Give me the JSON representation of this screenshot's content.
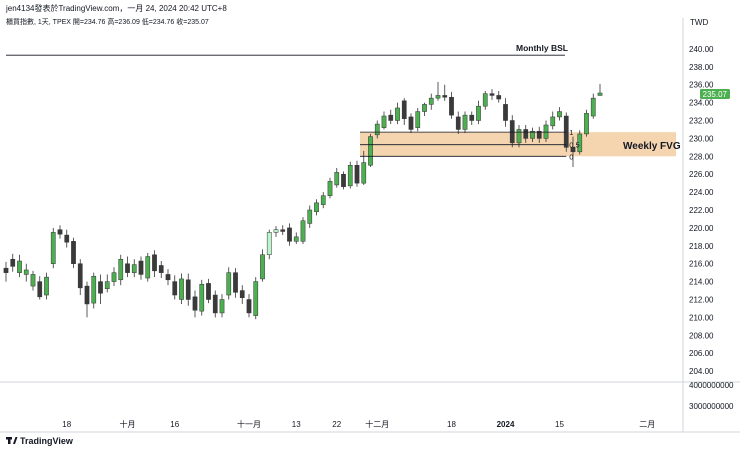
{
  "header": {
    "publisher_line": "jen4134發表於TradingView.com，一月 24, 2024 20:42 UTC+8",
    "symbol_line": "櫃買指數, 1天, TPEX  開=234.76  高=236.09  低=234.76  收=235.07"
  },
  "footer": {
    "brand": "TradingView"
  },
  "colors": {
    "up": "#4caf50",
    "down": "#3a3a3a",
    "fvg": "#f5d5b0",
    "price_tag": "#4caf50",
    "highlight": "#b9f6ca"
  },
  "chart_data": {
    "type": "candlestick",
    "currency": "TWD",
    "ylim": [
      202,
      242
    ],
    "y_ticks": [
      "240.00",
      "238.00",
      "236.00",
      "234.00",
      "232.00",
      "230.00",
      "228.00",
      "226.00",
      "224.00",
      "222.00",
      "220.00",
      "218.00",
      "216.00",
      "214.00",
      "212.00",
      "210.00",
      "208.00",
      "206.00",
      "204.00"
    ],
    "last_price": "235.07",
    "volume_ticks": [
      "4000000000",
      "3000000000"
    ],
    "x_ticks": [
      "18",
      "十月",
      "16",
      "十一月",
      "13",
      "22",
      "十二月",
      "18",
      "2024",
      "15",
      "二月"
    ],
    "annotations": {
      "bsl_label": "Monthly BSL",
      "bsl_price": 239.3,
      "fvg_label": "Weekly FVG",
      "fvg_top": 230.7,
      "fvg_bottom": 228.0,
      "fib_levels": [
        {
          "label": "1",
          "price": 230.7
        },
        {
          "label": "0.5",
          "price": 229.3
        },
        {
          "label": "0",
          "price": 228.0
        }
      ]
    },
    "candles": [
      [
        215.5,
        215.0,
        216.2,
        214.0
      ],
      [
        216.5,
        215.7,
        217.1,
        215.1
      ],
      [
        215.0,
        216.3,
        217.0,
        214.5
      ],
      [
        214.8,
        215.3,
        216.0,
        214.0
      ],
      [
        213.5,
        214.8,
        215.2,
        213.0
      ],
      [
        214.0,
        212.3,
        214.6,
        212.0
      ],
      [
        212.5,
        214.5,
        215.0,
        212.0
      ],
      [
        216.0,
        219.5,
        220.0,
        215.5
      ],
      [
        219.8,
        219.3,
        220.3,
        218.8
      ],
      [
        219.2,
        218.4,
        219.8,
        217.8
      ],
      [
        218.5,
        216.0,
        218.9,
        215.5
      ],
      [
        216.0,
        213.3,
        216.5,
        212.5
      ],
      [
        213.5,
        211.5,
        214.0,
        210.0
      ],
      [
        211.6,
        214.6,
        215.0,
        211.0
      ],
      [
        214.0,
        212.7,
        214.8,
        211.5
      ],
      [
        213.2,
        214.0,
        214.8,
        212.8
      ],
      [
        214.0,
        215.0,
        215.6,
        213.5
      ],
      [
        214.2,
        216.5,
        217.0,
        213.6
      ],
      [
        216.0,
        215.0,
        216.8,
        214.5
      ],
      [
        215.0,
        215.9,
        216.5,
        214.5
      ],
      [
        216.3,
        214.8,
        216.8,
        214.2
      ],
      [
        214.4,
        216.8,
        217.2,
        214.0
      ],
      [
        217.0,
        215.2,
        217.5,
        214.5
      ],
      [
        215.8,
        215.0,
        216.3,
        214.4
      ],
      [
        214.8,
        214.2,
        215.4,
        213.6
      ],
      [
        214.0,
        212.5,
        214.7,
        212.0
      ],
      [
        212.0,
        214.3,
        214.9,
        211.5
      ],
      [
        214.2,
        212.0,
        214.9,
        211.3
      ],
      [
        212.3,
        210.8,
        213.0,
        210.0
      ],
      [
        210.7,
        213.7,
        214.2,
        210.2
      ],
      [
        213.8,
        212.0,
        214.3,
        211.6
      ],
      [
        212.5,
        210.5,
        213.0,
        210.0
      ],
      [
        210.5,
        212.0,
        212.6,
        210.0
      ],
      [
        212.5,
        215.0,
        215.6,
        212.0
      ],
      [
        215.0,
        212.8,
        215.5,
        212.2
      ],
      [
        213.0,
        212.2,
        213.6,
        211.5
      ],
      [
        212.0,
        210.5,
        212.6,
        210.0
      ],
      [
        210.2,
        214.0,
        214.5,
        209.8
      ],
      [
        214.3,
        217.0,
        217.6,
        214.0
      ],
      [
        217.0,
        219.5,
        219.8,
        216.5
      ],
      [
        219.5,
        219.8,
        220.2,
        219.0
      ],
      [
        219.8,
        219.6,
        220.3,
        219.2
      ],
      [
        220.0,
        218.5,
        220.5,
        218.0
      ],
      [
        218.5,
        219.0,
        219.5,
        218.2
      ],
      [
        218.5,
        220.8,
        221.2,
        218.2
      ],
      [
        220.5,
        222.0,
        222.5,
        220.0
      ],
      [
        221.8,
        222.8,
        223.2,
        221.4
      ],
      [
        222.6,
        223.6,
        224.0,
        222.2
      ],
      [
        223.6,
        225.2,
        225.6,
        223.3
      ],
      [
        224.8,
        226.2,
        226.7,
        224.5
      ],
      [
        226.0,
        224.6,
        226.3,
        224.3
      ],
      [
        224.7,
        227.0,
        227.4,
        224.4
      ],
      [
        227.0,
        225.0,
        227.5,
        224.6
      ],
      [
        225.0,
        227.3,
        228.6,
        224.8
      ],
      [
        227.0,
        230.2,
        230.5,
        226.8
      ],
      [
        230.4,
        231.6,
        232.0,
        230.0
      ],
      [
        231.2,
        232.5,
        233.0,
        231.0
      ],
      [
        232.6,
        232.0,
        233.2,
        231.6
      ],
      [
        232.0,
        233.4,
        234.0,
        231.6
      ],
      [
        234.2,
        232.2,
        234.5,
        231.5
      ],
      [
        232.4,
        231.0,
        232.8,
        230.6
      ],
      [
        231.2,
        233.0,
        233.4,
        230.8
      ],
      [
        233.0,
        233.8,
        234.0,
        232.5
      ],
      [
        233.8,
        234.5,
        235.0,
        233.2
      ],
      [
        234.5,
        234.8,
        236.3,
        234.2
      ],
      [
        234.8,
        234.6,
        236.0,
        234.2
      ],
      [
        234.6,
        232.6,
        235.2,
        232.2
      ],
      [
        232.4,
        231.0,
        233.0,
        230.5
      ],
      [
        231.0,
        232.6,
        233.0,
        230.6
      ],
      [
        232.6,
        232.0,
        233.0,
        231.5
      ],
      [
        232.0,
        233.6,
        234.2,
        231.6
      ],
      [
        233.6,
        235.0,
        235.3,
        233.2
      ],
      [
        235.0,
        234.8,
        235.5,
        234.3
      ],
      [
        234.8,
        234.4,
        235.3,
        234.0
      ],
      [
        233.8,
        232.0,
        234.5,
        231.3
      ],
      [
        232.0,
        229.5,
        232.6,
        229.0
      ],
      [
        229.5,
        231.0,
        231.5,
        229.0
      ],
      [
        231.0,
        230.0,
        231.5,
        229.5
      ],
      [
        230.0,
        230.8,
        231.2,
        229.6
      ],
      [
        230.8,
        230.0,
        231.3,
        229.5
      ],
      [
        230.0,
        231.5,
        232.0,
        229.6
      ],
      [
        231.4,
        232.4,
        233.0,
        231.0
      ],
      [
        232.4,
        233.0,
        233.5,
        232.0
      ],
      [
        232.5,
        229.0,
        232.9,
        228.5
      ],
      [
        229.0,
        228.5,
        230.2,
        226.8
      ],
      [
        228.5,
        230.5,
        230.9,
        228.2
      ],
      [
        230.5,
        232.8,
        233.2,
        230.2
      ],
      [
        232.5,
        234.5,
        235.0,
        232.2
      ],
      [
        234.8,
        235.07,
        236.09,
        234.76
      ]
    ]
  }
}
